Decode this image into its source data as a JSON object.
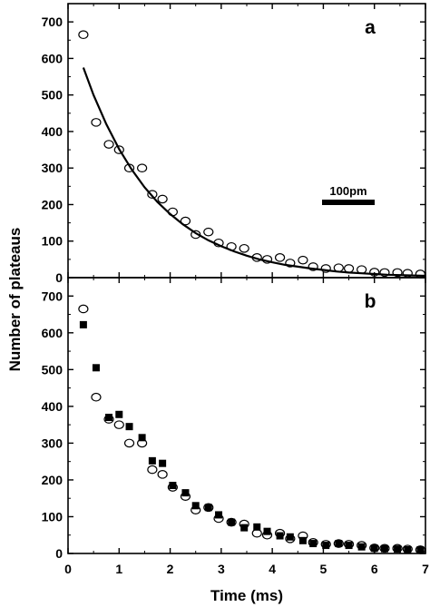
{
  "chart_data": [
    {
      "type": "scatter",
      "panel_label": "a",
      "xlim": [
        0,
        7
      ],
      "ylim": [
        0,
        750
      ],
      "x_ticks": [
        0,
        1,
        2,
        3,
        4,
        5,
        6,
        7
      ],
      "y_ticks": [
        0,
        100,
        200,
        300,
        400,
        500,
        600,
        700
      ],
      "scale_bar_label": "100pm",
      "series": [
        {
          "marker": "open-circle",
          "x": [
            0.3,
            0.55,
            0.8,
            1.0,
            1.2,
            1.45,
            1.65,
            1.85,
            2.05,
            2.3,
            2.5,
            2.75,
            2.95,
            3.2,
            3.45,
            3.7,
            3.9,
            4.15,
            4.35,
            4.6,
            4.8,
            5.05,
            5.3,
            5.5,
            5.75,
            6.0,
            6.2,
            6.45,
            6.65,
            6.9
          ],
          "y": [
            665,
            425,
            365,
            350,
            300,
            300,
            228,
            215,
            180,
            155,
            118,
            125,
            95,
            85,
            80,
            55,
            50,
            55,
            40,
            48,
            30,
            25,
            27,
            25,
            22,
            15,
            14,
            14,
            12,
            10
          ]
        },
        {
          "marker": "fit-line",
          "x": [
            0.3,
            0.5,
            0.75,
            1.0,
            1.25,
            1.5,
            1.75,
            2.0,
            2.25,
            2.5,
            2.75,
            3.0,
            3.25,
            3.5,
            3.75,
            4.0,
            4.25,
            4.5,
            4.75,
            5.0,
            5.25,
            5.5,
            5.75,
            6.0,
            6.25,
            6.5,
            6.75,
            7.0
          ],
          "y": [
            575,
            500,
            420,
            352,
            295,
            247,
            207,
            174,
            146,
            122,
            102,
            86,
            72,
            60,
            50,
            42,
            35,
            30,
            25,
            21,
            17,
            14,
            12,
            10,
            8,
            7,
            6,
            5
          ]
        }
      ]
    },
    {
      "type": "scatter",
      "panel_label": "b",
      "xlim": [
        0,
        7
      ],
      "ylim": [
        0,
        750
      ],
      "x_ticks": [
        0,
        1,
        2,
        3,
        4,
        5,
        6,
        7
      ],
      "y_ticks": [
        0,
        100,
        200,
        300,
        400,
        500,
        600,
        700
      ],
      "series": [
        {
          "marker": "open-circle",
          "x": [
            0.3,
            0.55,
            0.8,
            1.0,
            1.2,
            1.45,
            1.65,
            1.85,
            2.05,
            2.3,
            2.5,
            2.75,
            2.95,
            3.2,
            3.45,
            3.7,
            3.9,
            4.15,
            4.35,
            4.6,
            4.8,
            5.05,
            5.3,
            5.5,
            5.75,
            6.0,
            6.2,
            6.45,
            6.65,
            6.9
          ],
          "y": [
            665,
            425,
            365,
            350,
            300,
            300,
            228,
            215,
            180,
            155,
            118,
            125,
            95,
            85,
            80,
            55,
            50,
            55,
            40,
            48,
            30,
            25,
            27,
            25,
            22,
            15,
            14,
            14,
            12,
            10
          ]
        },
        {
          "marker": "filled-square",
          "x": [
            0.3,
            0.55,
            0.8,
            1.0,
            1.2,
            1.45,
            1.65,
            1.85,
            2.05,
            2.3,
            2.5,
            2.75,
            2.95,
            3.2,
            3.45,
            3.7,
            3.9,
            4.15,
            4.35,
            4.6,
            4.8,
            5.05,
            5.3,
            5.5,
            5.75,
            6.0,
            6.2,
            6.45,
            6.65,
            6.9
          ],
          "y": [
            622,
            505,
            370,
            378,
            345,
            315,
            252,
            245,
            185,
            165,
            130,
            125,
            105,
            85,
            70,
            72,
            60,
            48,
            45,
            35,
            27,
            22,
            27,
            22,
            18,
            14,
            13,
            12,
            10,
            10
          ]
        }
      ]
    }
  ],
  "shared_axes": {
    "xlabel": "Time (ms)",
    "ylabel": "Number of plateaus"
  }
}
